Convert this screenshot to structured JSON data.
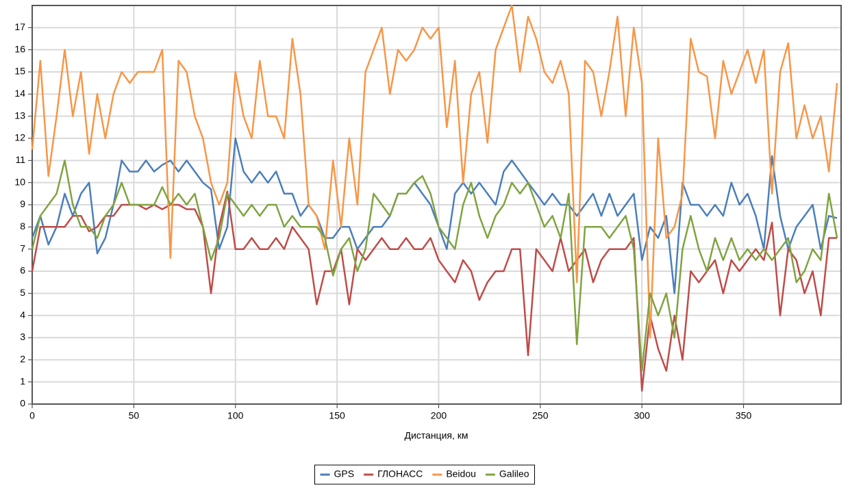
{
  "chart_data": {
    "type": "line",
    "x_label": "Дистанция, км",
    "x": [
      0,
      4,
      8,
      12,
      16,
      20,
      24,
      28,
      32,
      36,
      40,
      44,
      48,
      52,
      56,
      60,
      64,
      68,
      72,
      76,
      80,
      84,
      88,
      92,
      96,
      100,
      104,
      108,
      112,
      116,
      120,
      124,
      128,
      132,
      136,
      140,
      144,
      148,
      152,
      156,
      160,
      164,
      168,
      172,
      176,
      180,
      184,
      188,
      192,
      196,
      200,
      204,
      208,
      212,
      216,
      220,
      224,
      228,
      232,
      236,
      240,
      244,
      248,
      252,
      256,
      260,
      264,
      268,
      272,
      276,
      280,
      284,
      288,
      292,
      296,
      300,
      304,
      308,
      312,
      316,
      320,
      324,
      328,
      332,
      336,
      340,
      344,
      348,
      352,
      356,
      360,
      364,
      368,
      372,
      376,
      380,
      384,
      388,
      392,
      396
    ],
    "series": [
      {
        "name": "GPS",
        "color": "#4a7ebb",
        "values": [
          7.5,
          8.5,
          7.2,
          8,
          9.5,
          8.5,
          9.5,
          10,
          6.8,
          7.5,
          9,
          11,
          10.5,
          10.5,
          11,
          10.5,
          10.8,
          11,
          10.5,
          11,
          10.5,
          10,
          9.7,
          7,
          8,
          12,
          10.5,
          10,
          10.5,
          10,
          10.5,
          9.5,
          9.5,
          8.5,
          9,
          8.5,
          7.5,
          7.5,
          8,
          8,
          7,
          7.5,
          8,
          8,
          8.5,
          9.5,
          9.5,
          10,
          9.5,
          9,
          8,
          7,
          9.5,
          10,
          9.5,
          10,
          9.5,
          9,
          10.5,
          11,
          10.5,
          10,
          9.5,
          9,
          9.5,
          9,
          9,
          8.5,
          9,
          9.5,
          8.5,
          9.5,
          8.5,
          9,
          9.5,
          6.5,
          8,
          7.5,
          8.5,
          5,
          10,
          9,
          9,
          8.5,
          9,
          8.5,
          10,
          9,
          9.5,
          8.5,
          7,
          11.2,
          8.5,
          7,
          8,
          8.5,
          9,
          7,
          8.5,
          8.4
        ]
      },
      {
        "name": "ГЛОНАСС",
        "color": "#be4b48",
        "values": [
          6,
          8,
          8,
          8,
          8,
          8.5,
          8.5,
          7.8,
          8,
          8.5,
          8.5,
          9,
          9,
          9,
          8.8,
          9,
          8.8,
          9,
          9,
          8.8,
          8.8,
          8,
          5,
          8,
          9.6,
          7,
          7,
          7.5,
          7,
          7,
          7.5,
          7,
          8,
          7.5,
          7,
          4.5,
          6,
          6,
          7,
          4.5,
          7,
          6.5,
          7,
          7.5,
          7,
          7,
          7.5,
          7,
          7,
          7.5,
          6.5,
          6,
          5.5,
          6.5,
          6,
          4.7,
          5.5,
          6,
          6,
          7,
          7,
          2.2,
          7,
          6.5,
          6,
          7.5,
          6,
          6.5,
          7,
          5.5,
          6.5,
          7,
          7,
          7,
          7.5,
          0.6,
          4,
          2.5,
          1.5,
          4,
          2,
          6,
          5.5,
          6,
          6.5,
          5,
          6.5,
          6,
          6.5,
          7,
          6.5,
          8.2,
          4,
          7,
          6.5,
          5,
          6,
          4,
          7.5,
          7.5
        ]
      },
      {
        "name": "Beidou",
        "color": "#f79646",
        "values": [
          11.5,
          15.5,
          10.3,
          13,
          16,
          13,
          15,
          11.3,
          14,
          12,
          14,
          15,
          14.5,
          15,
          15,
          15,
          16,
          6.6,
          15.5,
          15,
          13,
          12,
          10,
          9,
          10,
          15,
          13,
          12,
          15.5,
          13,
          13,
          12,
          16.5,
          14,
          9,
          8.5,
          7,
          11,
          8,
          12,
          9,
          15,
          16,
          17,
          14,
          16,
          15.5,
          16,
          17,
          16.5,
          17,
          12.5,
          15.5,
          10,
          14,
          15,
          11.8,
          16,
          17,
          18,
          15,
          17.5,
          16.5,
          15,
          14.5,
          15.5,
          14,
          5.5,
          15.5,
          15,
          13,
          15,
          17.5,
          13,
          17,
          14.5,
          3,
          12,
          7.5,
          8,
          9.5,
          16.5,
          15,
          14.8,
          12,
          15.5,
          14,
          15,
          16,
          14.5,
          16,
          9.5,
          15,
          16.3,
          12,
          13.5,
          12,
          13,
          10.5,
          14.5
        ]
      },
      {
        "name": "Galileo",
        "color": "#7fa33f",
        "values": [
          7,
          8.5,
          9,
          9.5,
          11,
          9,
          8,
          8,
          7.5,
          8.5,
          9,
          10,
          9,
          9,
          9,
          9,
          9.8,
          9,
          9.5,
          9,
          9.5,
          8,
          6.5,
          7.5,
          9.5,
          9,
          8.5,
          9,
          8.5,
          9,
          9,
          8,
          8.5,
          8,
          8,
          8,
          7.5,
          5.8,
          7,
          7.5,
          6,
          7,
          9.5,
          9,
          8.5,
          9.5,
          9.5,
          10,
          10.3,
          9.5,
          8,
          7.5,
          7,
          9,
          10,
          8.5,
          7.5,
          8.5,
          9,
          10,
          9.5,
          10,
          9,
          8,
          8.5,
          7.5,
          9.5,
          2.7,
          8,
          8,
          8,
          7.5,
          8,
          8.5,
          7,
          1.5,
          5,
          4,
          5,
          3,
          7,
          8.5,
          7,
          6,
          7.5,
          6.5,
          7.5,
          6.5,
          7,
          6.5,
          7,
          6.5,
          7,
          7.5,
          5.5,
          6,
          7,
          6.5,
          9.5,
          7.5
        ]
      }
    ],
    "xlim": [
      0,
      398
    ],
    "ylim": [
      0,
      18
    ],
    "xticks": [
      0,
      50,
      100,
      150,
      200,
      250,
      300,
      350
    ],
    "yticks": [
      0,
      1,
      2,
      3,
      4,
      5,
      6,
      7,
      8,
      9,
      10,
      11,
      12,
      13,
      14,
      15,
      16,
      17
    ],
    "grid": true,
    "legend": "bottom"
  }
}
